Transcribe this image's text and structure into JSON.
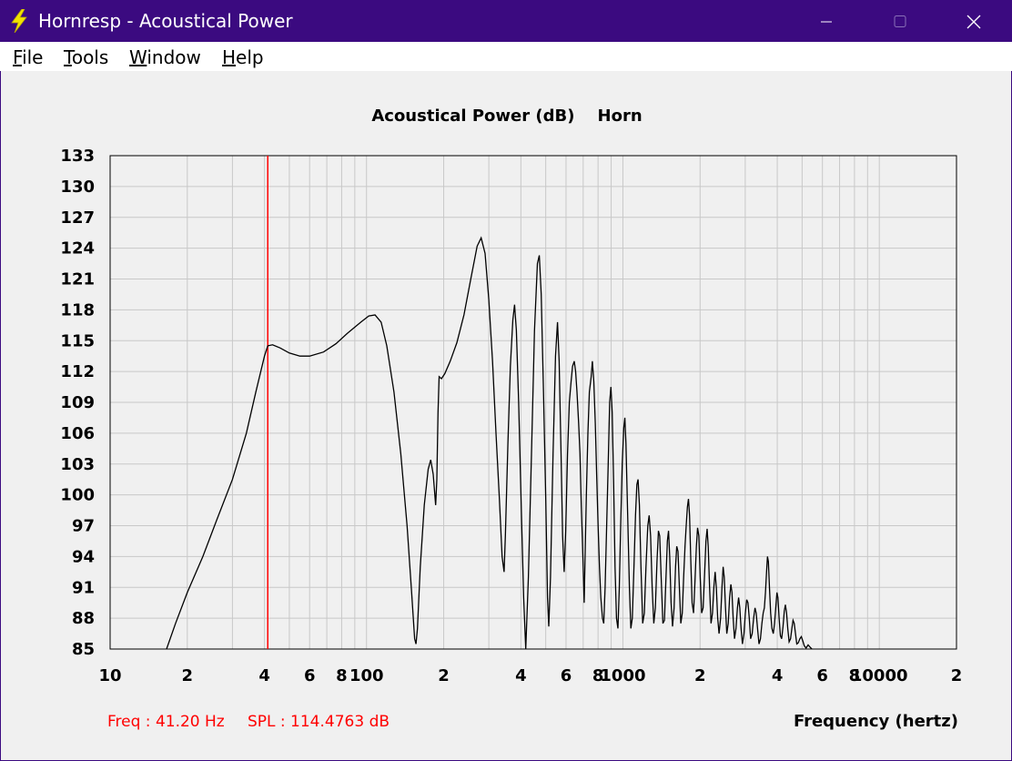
{
  "window": {
    "title": "Hornresp - Acoustical Power",
    "buttons": {
      "minimize": "─",
      "maximize": "☐",
      "close": "✕"
    }
  },
  "menu": [
    {
      "accel": "F",
      "rest": "ile"
    },
    {
      "accel": "T",
      "rest": "ools"
    },
    {
      "accel": "W",
      "rest": "indow"
    },
    {
      "accel": "H",
      "rest": "elp"
    }
  ],
  "colors": {
    "titlebar": "#3b0a80",
    "cursor": "#ff0000",
    "trace": "#000000",
    "grid": "#c8c8c8"
  },
  "icons": {
    "app": "lightning-bolt-icon"
  },
  "chart_data": {
    "type": "line",
    "title": "Acoustical Power (dB)    Horn",
    "xlabel": "Frequency (hertz)",
    "ylabel": "",
    "xscale": "log",
    "xlim": [
      10,
      20000
    ],
    "ylim": [
      85,
      133
    ],
    "y_ticks": [
      133,
      130,
      127,
      124,
      121,
      118,
      115,
      112,
      109,
      106,
      103,
      100,
      97,
      94,
      91,
      88,
      85
    ],
    "x_ticks": [
      {
        "value": 10,
        "label": "10"
      },
      {
        "value": 20,
        "label": "2"
      },
      {
        "value": 40,
        "label": "4"
      },
      {
        "value": 60,
        "label": "6"
      },
      {
        "value": 80,
        "label": "8"
      },
      {
        "value": 100,
        "label": "100"
      },
      {
        "value": 200,
        "label": "2"
      },
      {
        "value": 400,
        "label": "4"
      },
      {
        "value": 600,
        "label": "6"
      },
      {
        "value": 800,
        "label": "8"
      },
      {
        "value": 1000,
        "label": "1000"
      },
      {
        "value": 2000,
        "label": "2"
      },
      {
        "value": 4000,
        "label": "4"
      },
      {
        "value": 6000,
        "label": "6"
      },
      {
        "value": 8000,
        "label": "8"
      },
      {
        "value": 10000,
        "label": "10000"
      },
      {
        "value": 20000,
        "label": "2"
      }
    ],
    "grid": true,
    "cursor": {
      "freq": 41.2,
      "readout_freq": "Freq : 41.20 Hz",
      "readout_spl": "SPL : 114.4763 dB"
    },
    "series": [
      {
        "points": [
          [
            16.6,
            85
          ],
          [
            18,
            87.5
          ],
          [
            20,
            90.5
          ],
          [
            23,
            94
          ],
          [
            26,
            97.5
          ],
          [
            30,
            101.5
          ],
          [
            34,
            106
          ],
          [
            37,
            110
          ],
          [
            40,
            113.5
          ],
          [
            41.2,
            114.5
          ],
          [
            43,
            114.6
          ],
          [
            46,
            114.3
          ],
          [
            50,
            113.8
          ],
          [
            55,
            113.5
          ],
          [
            60,
            113.5
          ],
          [
            68,
            113.9
          ],
          [
            76,
            114.7
          ],
          [
            85,
            115.8
          ],
          [
            95,
            116.8
          ],
          [
            102,
            117.4
          ],
          [
            108,
            117.5
          ],
          [
            114,
            116.8
          ],
          [
            120,
            114.5
          ],
          [
            128,
            110
          ],
          [
            136,
            104
          ],
          [
            144,
            97
          ],
          [
            150,
            90.5
          ],
          [
            154,
            86
          ],
          [
            156,
            85.5
          ],
          [
            158,
            87
          ],
          [
            162,
            93
          ],
          [
            168,
            99
          ],
          [
            174,
            102.5
          ],
          [
            178,
            103.4
          ],
          [
            182,
            102
          ],
          [
            186,
            99
          ],
          [
            188,
            101.5
          ],
          [
            190,
            108
          ],
          [
            192,
            111.5
          ],
          [
            196,
            111.3
          ],
          [
            202,
            111.8
          ],
          [
            212,
            113
          ],
          [
            225,
            114.8
          ],
          [
            240,
            117.5
          ],
          [
            255,
            121
          ],
          [
            270,
            124.2
          ],
          [
            280,
            125
          ],
          [
            290,
            123.5
          ],
          [
            300,
            119
          ],
          [
            310,
            113
          ],
          [
            320,
            106
          ],
          [
            330,
            99.5
          ],
          [
            338,
            94
          ],
          [
            344,
            92.5
          ],
          [
            348,
            96
          ],
          [
            356,
            105
          ],
          [
            364,
            112.5
          ],
          [
            372,
            117
          ],
          [
            378,
            118.5
          ],
          [
            384,
            116
          ],
          [
            392,
            109
          ],
          [
            402,
            98
          ],
          [
            410,
            90
          ],
          [
            418,
            84
          ],
          [
            428,
            92
          ],
          [
            440,
            104
          ],
          [
            452,
            116
          ],
          [
            464,
            122.5
          ],
          [
            472,
            123.3
          ],
          [
            480,
            119.5
          ],
          [
            490,
            110
          ],
          [
            500,
            99.5
          ],
          [
            508,
            90
          ],
          [
            514,
            87.2
          ],
          [
            522,
            92
          ],
          [
            534,
            104
          ],
          [
            546,
            113.5
          ],
          [
            556,
            116.8
          ],
          [
            564,
            113
          ],
          [
            574,
            104
          ],
          [
            582,
            96
          ],
          [
            590,
            92.5
          ],
          [
            598,
            96.5
          ],
          [
            608,
            104
          ],
          [
            618,
            109
          ],
          [
            628,
            111
          ],
          [
            636,
            112.5
          ],
          [
            646,
            113
          ],
          [
            654,
            112
          ],
          [
            662,
            110
          ],
          [
            672,
            107
          ],
          [
            680,
            104
          ],
          [
            688,
            99
          ],
          [
            694,
            96
          ],
          [
            700,
            93
          ],
          [
            706,
            89.5
          ],
          [
            712,
            94
          ],
          [
            720,
            100
          ],
          [
            730,
            106
          ],
          [
            740,
            110
          ],
          [
            752,
            111.5
          ],
          [
            760,
            113
          ],
          [
            770,
            111
          ],
          [
            780,
            107
          ],
          [
            790,
            102
          ],
          [
            800,
            97
          ],
          [
            810,
            93
          ],
          [
            820,
            90
          ],
          [
            832,
            88
          ],
          [
            842,
            87.5
          ],
          [
            852,
            91
          ],
          [
            864,
            97
          ],
          [
            876,
            103
          ],
          [
            888,
            109
          ],
          [
            898,
            110.5
          ],
          [
            908,
            108
          ],
          [
            920,
            101
          ],
          [
            932,
            93
          ],
          [
            944,
            88
          ],
          [
            956,
            87
          ],
          [
            968,
            91
          ],
          [
            980,
            97
          ],
          [
            994,
            103
          ],
          [
            1008,
            106.5
          ],
          [
            1018,
            107.5
          ],
          [
            1028,
            105
          ],
          [
            1044,
            98
          ],
          [
            1060,
            91
          ],
          [
            1074,
            87
          ],
          [
            1088,
            88
          ],
          [
            1104,
            93
          ],
          [
            1120,
            98
          ],
          [
            1134,
            101
          ],
          [
            1146,
            101.5
          ],
          [
            1160,
            99
          ],
          [
            1176,
            93
          ],
          [
            1194,
            87.5
          ],
          [
            1212,
            88.5
          ],
          [
            1230,
            93
          ],
          [
            1250,
            97
          ],
          [
            1266,
            98
          ],
          [
            1282,
            96
          ],
          [
            1300,
            91
          ],
          [
            1320,
            87.5
          ],
          [
            1338,
            89
          ],
          [
            1358,
            93.5
          ],
          [
            1376,
            96.5
          ],
          [
            1392,
            96
          ],
          [
            1410,
            92
          ],
          [
            1432,
            87.5
          ],
          [
            1452,
            87.8
          ],
          [
            1472,
            92
          ],
          [
            1490,
            95.5
          ],
          [
            1506,
            96.5
          ],
          [
            1522,
            94
          ],
          [
            1542,
            89.5
          ],
          [
            1562,
            87.2
          ],
          [
            1584,
            89
          ],
          [
            1604,
            93
          ],
          [
            1622,
            95
          ],
          [
            1640,
            94.5
          ],
          [
            1660,
            91
          ],
          [
            1682,
            87.5
          ],
          [
            1704,
            88.5
          ],
          [
            1726,
            92
          ],
          [
            1746,
            95
          ],
          [
            1766,
            97
          ],
          [
            1784,
            98.8
          ],
          [
            1802,
            99.6
          ],
          [
            1820,
            98
          ],
          [
            1840,
            93.5
          ],
          [
            1862,
            89.5
          ],
          [
            1886,
            88.5
          ],
          [
            1910,
            91.5
          ],
          [
            1934,
            95
          ],
          [
            1956,
            96.8
          ],
          [
            1978,
            96
          ],
          [
            2002,
            92
          ],
          [
            2028,
            88.5
          ],
          [
            2056,
            89
          ],
          [
            2084,
            92.5
          ],
          [
            2108,
            95.5
          ],
          [
            2130,
            96.7
          ],
          [
            2152,
            95
          ],
          [
            2178,
            91
          ],
          [
            2206,
            87.5
          ],
          [
            2236,
            88.5
          ],
          [
            2264,
            91
          ],
          [
            2290,
            92.5
          ],
          [
            2314,
            91
          ],
          [
            2342,
            88
          ],
          [
            2372,
            86.5
          ],
          [
            2404,
            88
          ],
          [
            2434,
            91
          ],
          [
            2460,
            93
          ],
          [
            2484,
            92
          ],
          [
            2512,
            89
          ],
          [
            2542,
            86.5
          ],
          [
            2576,
            87.5
          ],
          [
            2608,
            90
          ],
          [
            2636,
            91.3
          ],
          [
            2662,
            90.5
          ],
          [
            2692,
            88
          ],
          [
            2724,
            86
          ],
          [
            2760,
            87
          ],
          [
            2796,
            89
          ],
          [
            2826,
            90
          ],
          [
            2856,
            89
          ],
          [
            2890,
            87
          ],
          [
            2926,
            85.5
          ],
          [
            2966,
            86.5
          ],
          [
            3004,
            88.5
          ],
          [
            3040,
            89.8
          ],
          [
            3074,
            89.5
          ],
          [
            3110,
            88
          ],
          [
            3150,
            86
          ],
          [
            3194,
            86.5
          ],
          [
            3236,
            88
          ],
          [
            3274,
            89
          ],
          [
            3310,
            88.5
          ],
          [
            3350,
            87
          ],
          [
            3394,
            85.5
          ],
          [
            3440,
            86
          ],
          [
            3484,
            87.5
          ],
          [
            3524,
            88.5
          ],
          [
            3562,
            89
          ],
          [
            3598,
            90.5
          ],
          [
            3632,
            92.5
          ],
          [
            3664,
            94
          ],
          [
            3694,
            93.5
          ],
          [
            3728,
            91
          ],
          [
            3768,
            88.5
          ],
          [
            3812,
            87
          ],
          [
            3858,
            86.5
          ],
          [
            3904,
            87.5
          ],
          [
            3946,
            89
          ],
          [
            3986,
            90.5
          ],
          [
            4024,
            90
          ],
          [
            4066,
            88
          ],
          [
            4112,
            86.3
          ],
          [
            4162,
            86
          ],
          [
            4212,
            87.2
          ],
          [
            4260,
            88.7
          ],
          [
            4304,
            89.3
          ],
          [
            4348,
            88.5
          ],
          [
            4396,
            87
          ],
          [
            4450,
            85.7
          ],
          [
            4506,
            86
          ],
          [
            4560,
            87
          ],
          [
            4610,
            87.8
          ],
          [
            4658,
            87.5
          ],
          [
            4710,
            86.5
          ],
          [
            4766,
            85.5
          ],
          [
            4830,
            85.6
          ],
          [
            4900,
            86
          ],
          [
            4964,
            86.2
          ],
          [
            5030,
            85.8
          ],
          [
            5100,
            85.3
          ],
          [
            5180,
            85.1
          ],
          [
            5280,
            85.4
          ],
          [
            5360,
            85.2
          ],
          [
            5460,
            85
          ]
        ]
      }
    ]
  }
}
